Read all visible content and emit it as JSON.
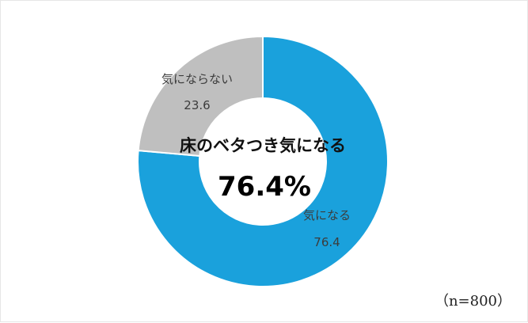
{
  "chart_data": {
    "type": "pie",
    "variant": "donut",
    "categories": [
      "気になる",
      "気にならない"
    ],
    "values": [
      76.4,
      23.6
    ],
    "colors": [
      "#1aa1dc",
      "#bfbfbf"
    ],
    "value_labels": [
      "76.4",
      "23.6"
    ],
    "center_title": "床のベタつき気になる",
    "center_value": "76.4%",
    "sample_note": "（n=800）",
    "title": "",
    "legend": "none"
  }
}
